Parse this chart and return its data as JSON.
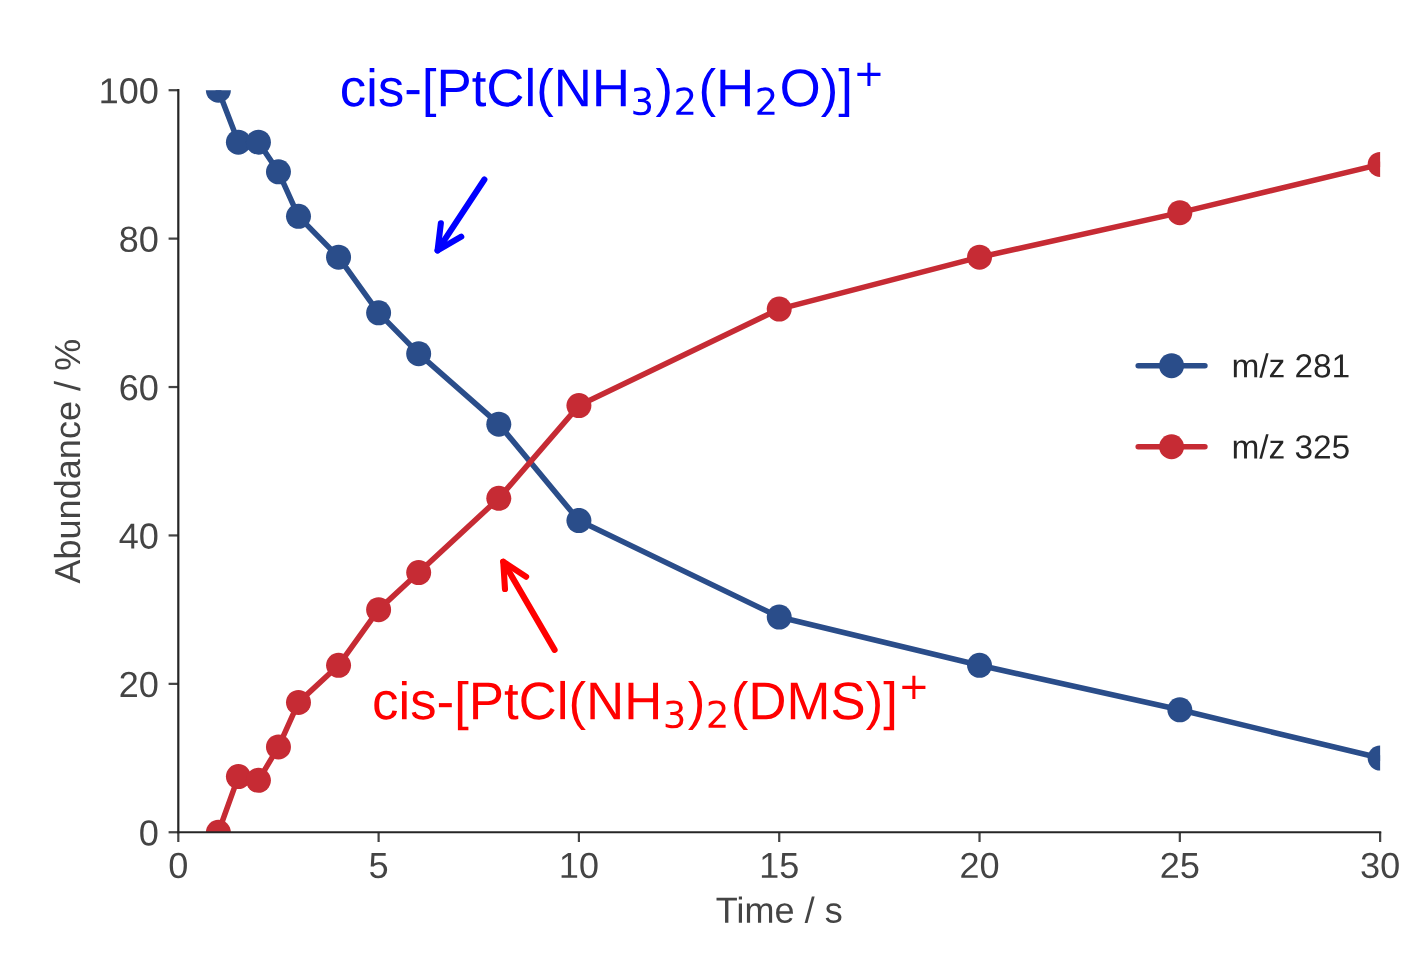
{
  "chart_data": {
    "type": "line",
    "xlabel": "Time / s",
    "ylabel": "Abundance / %",
    "x": [
      1,
      1.5,
      2,
      2.5,
      3,
      4,
      5,
      6,
      8,
      10,
      15,
      20,
      25,
      30
    ],
    "series": [
      {
        "name": "m/z 281",
        "color": "#2a4d8a",
        "values": [
          100,
          93,
          93,
          89,
          83,
          77.5,
          70,
          64.5,
          55,
          42,
          29,
          22.5,
          16.5,
          10
        ]
      },
      {
        "name": "m/z 325",
        "color": "#c62b34",
        "values": [
          0,
          7.5,
          7,
          11.5,
          17.5,
          22.5,
          30,
          35,
          45,
          57.5,
          70.5,
          77.5,
          83.5,
          90
        ]
      }
    ],
    "xlim": [
      0,
      30
    ],
    "ylim": [
      0,
      100
    ],
    "xticks": [
      0,
      5,
      10,
      15,
      20,
      25,
      30
    ],
    "yticks": [
      0,
      20,
      40,
      60,
      80,
      100
    ],
    "annotations": [
      "cis-[PtCl(NH$_{3}$)$_{2}$(H$_{2}$O)]$^{+}$",
      "cis-[PtCl(NH$_{3}$)$_{2}$(DMS)]$^{+}$"
    ],
    "marker": "circle",
    "line_style": "solid",
    "legend": "right",
    "grid": false
  }
}
